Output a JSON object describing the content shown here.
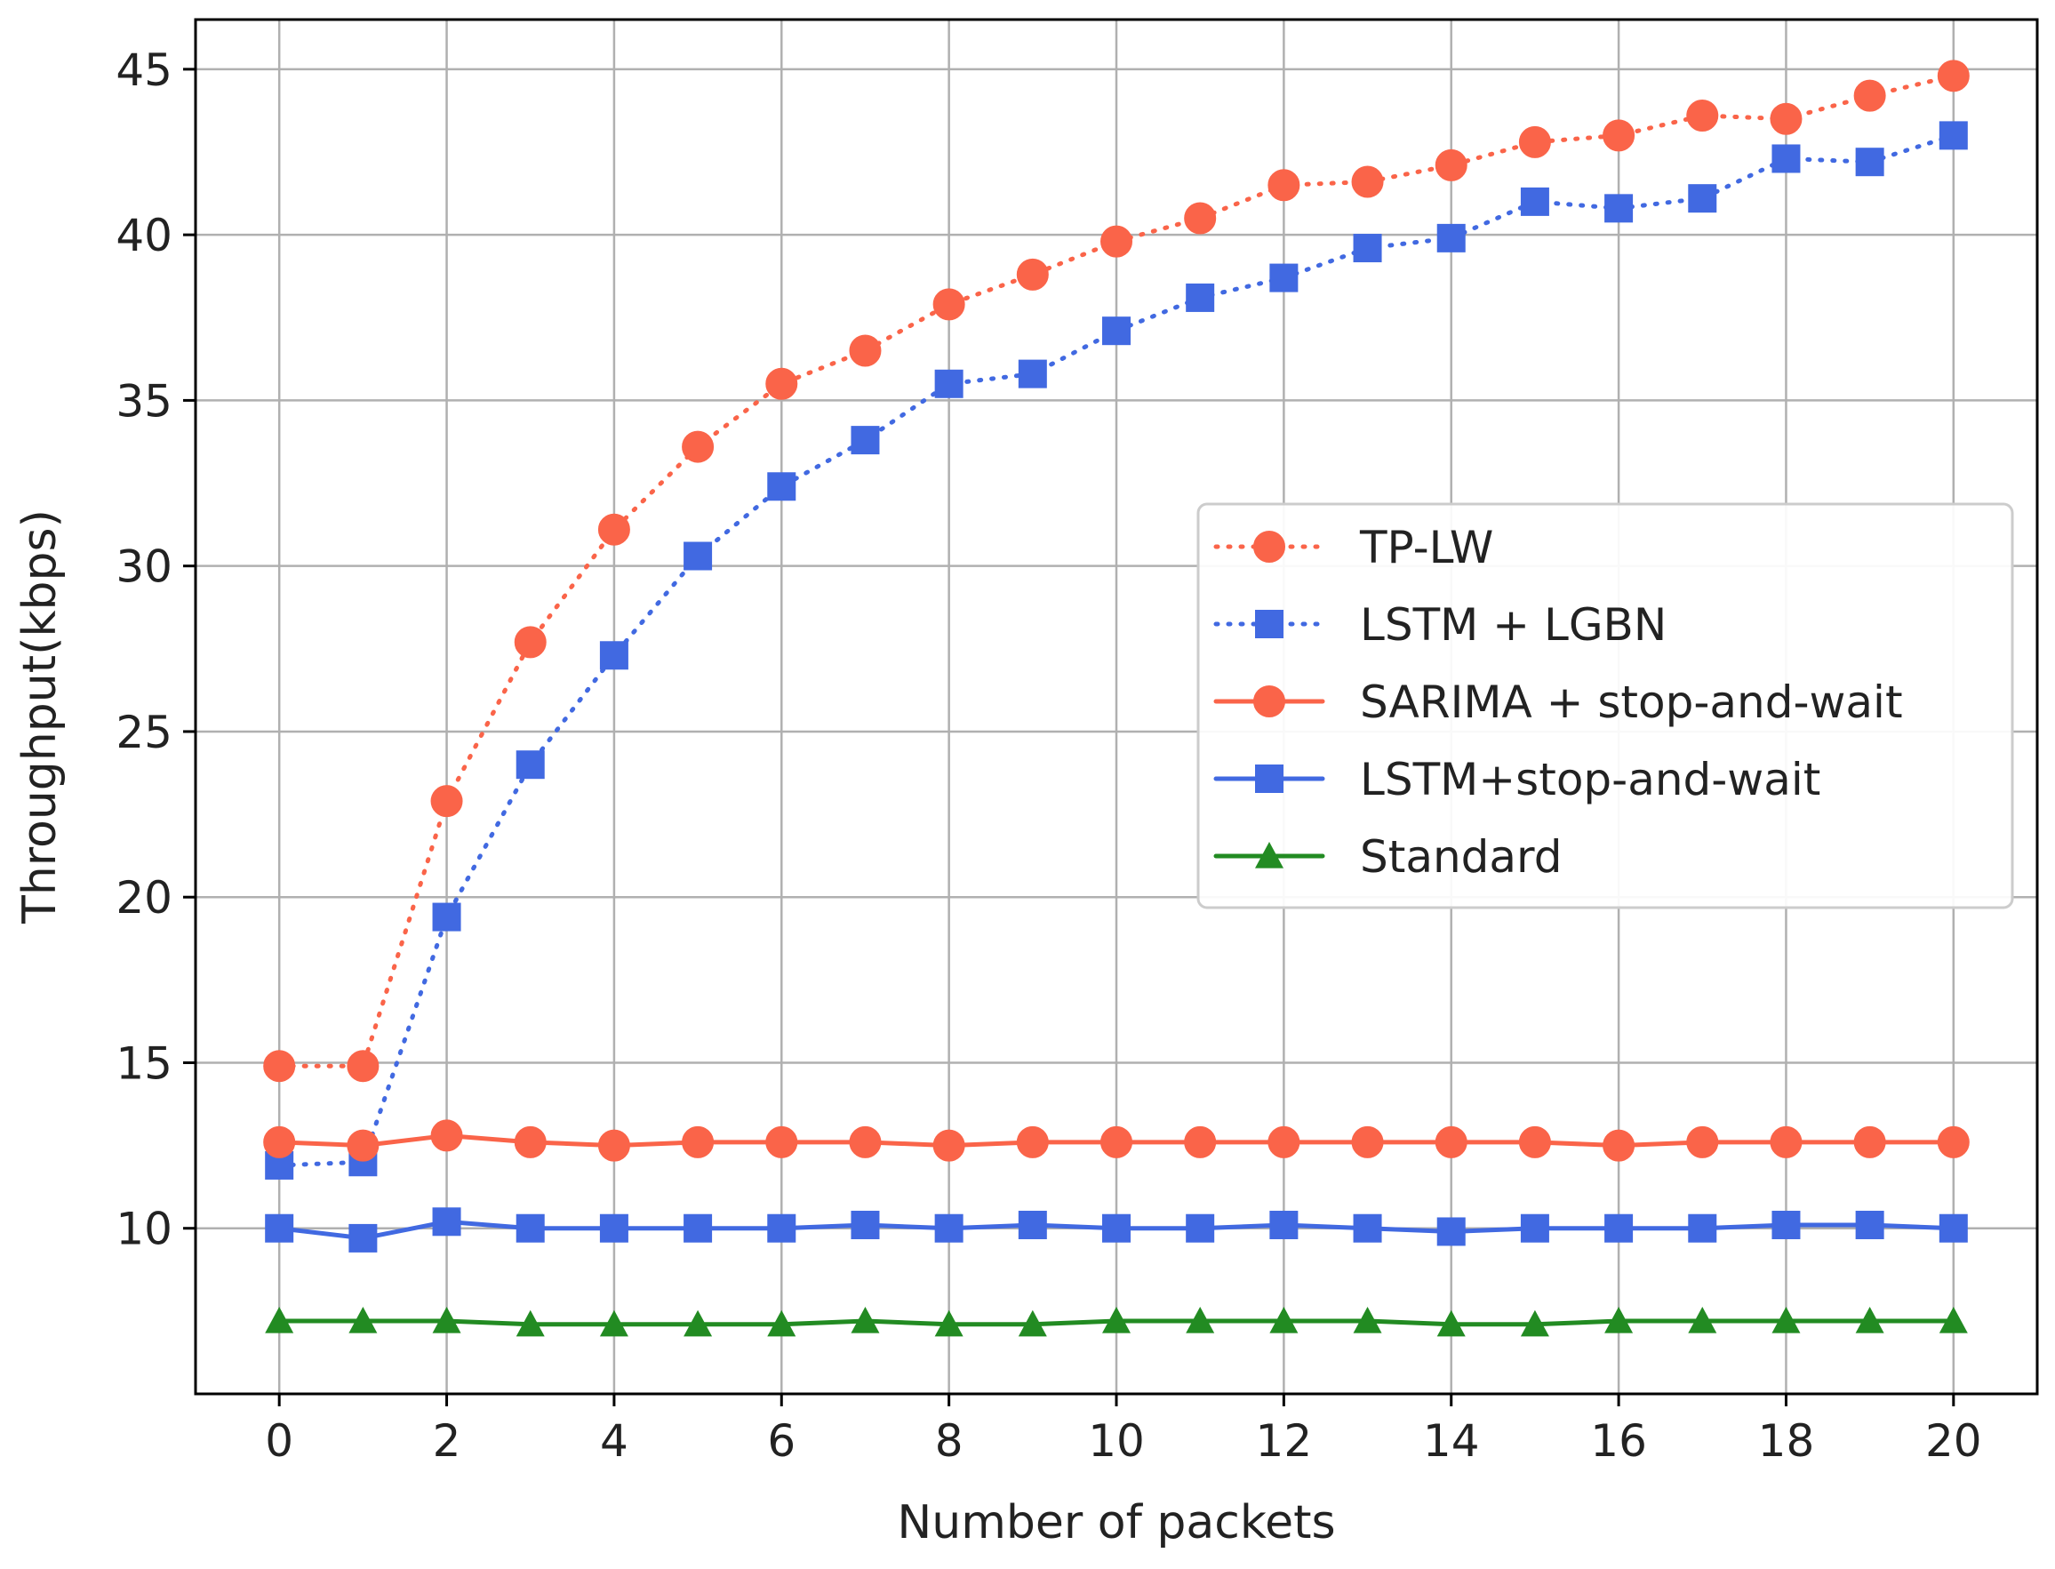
{
  "chart_data": {
    "type": "line",
    "title": "",
    "xlabel": "Number of packets",
    "ylabel": "Throughput(kbps)",
    "xlim": [
      -1,
      21
    ],
    "ylim": [
      5,
      46.5
    ],
    "x_ticks": [
      0,
      2,
      4,
      6,
      8,
      10,
      12,
      14,
      16,
      18,
      20
    ],
    "y_ticks": [
      10,
      15,
      20,
      25,
      30,
      35,
      40,
      45
    ],
    "grid": true,
    "legend_position": "center-right",
    "x": [
      0,
      1,
      2,
      3,
      4,
      5,
      6,
      7,
      8,
      9,
      10,
      11,
      12,
      13,
      14,
      15,
      16,
      17,
      18,
      19,
      20
    ],
    "series": [
      {
        "name": "TP-LW",
        "color": "#fa6449",
        "line_style": "dotted",
        "marker": "circle",
        "values": [
          14.9,
          14.9,
          22.9,
          27.7,
          31.1,
          33.6,
          35.5,
          36.5,
          37.9,
          38.8,
          39.8,
          40.5,
          41.5,
          41.6,
          42.1,
          42.8,
          43.0,
          43.6,
          43.5,
          44.2,
          44.8
        ]
      },
      {
        "name": "LSTM + LGBN",
        "color": "#4169e1",
        "line_style": "dotted",
        "marker": "square",
        "values": [
          11.9,
          12.0,
          19.4,
          24.0,
          27.3,
          30.3,
          32.4,
          33.8,
          35.5,
          35.8,
          37.1,
          38.1,
          38.7,
          39.6,
          39.9,
          41.0,
          40.8,
          41.1,
          42.3,
          42.2,
          43.0
        ]
      },
      {
        "name": "SARIMA + stop-and-wait",
        "color": "#fa6449",
        "line_style": "solid",
        "marker": "circle",
        "values": [
          12.6,
          12.5,
          12.8,
          12.6,
          12.5,
          12.6,
          12.6,
          12.6,
          12.5,
          12.6,
          12.6,
          12.6,
          12.6,
          12.6,
          12.6,
          12.6,
          12.5,
          12.6,
          12.6,
          12.6,
          12.6
        ]
      },
      {
        "name": "LSTM+stop-and-wait",
        "color": "#4169e1",
        "line_style": "solid",
        "marker": "square",
        "values": [
          10.0,
          9.7,
          10.2,
          10.0,
          10.0,
          10.0,
          10.0,
          10.1,
          10.0,
          10.1,
          10.0,
          10.0,
          10.1,
          10.0,
          9.9,
          10.0,
          10.0,
          10.0,
          10.1,
          10.1,
          10.0
        ]
      },
      {
        "name": "Standard",
        "color": "#228b22",
        "line_style": "solid",
        "marker": "triangle",
        "values": [
          7.2,
          7.2,
          7.2,
          7.1,
          7.1,
          7.1,
          7.1,
          7.2,
          7.1,
          7.1,
          7.2,
          7.2,
          7.2,
          7.2,
          7.1,
          7.1,
          7.2,
          7.2,
          7.2,
          7.2,
          7.2
        ]
      }
    ]
  }
}
